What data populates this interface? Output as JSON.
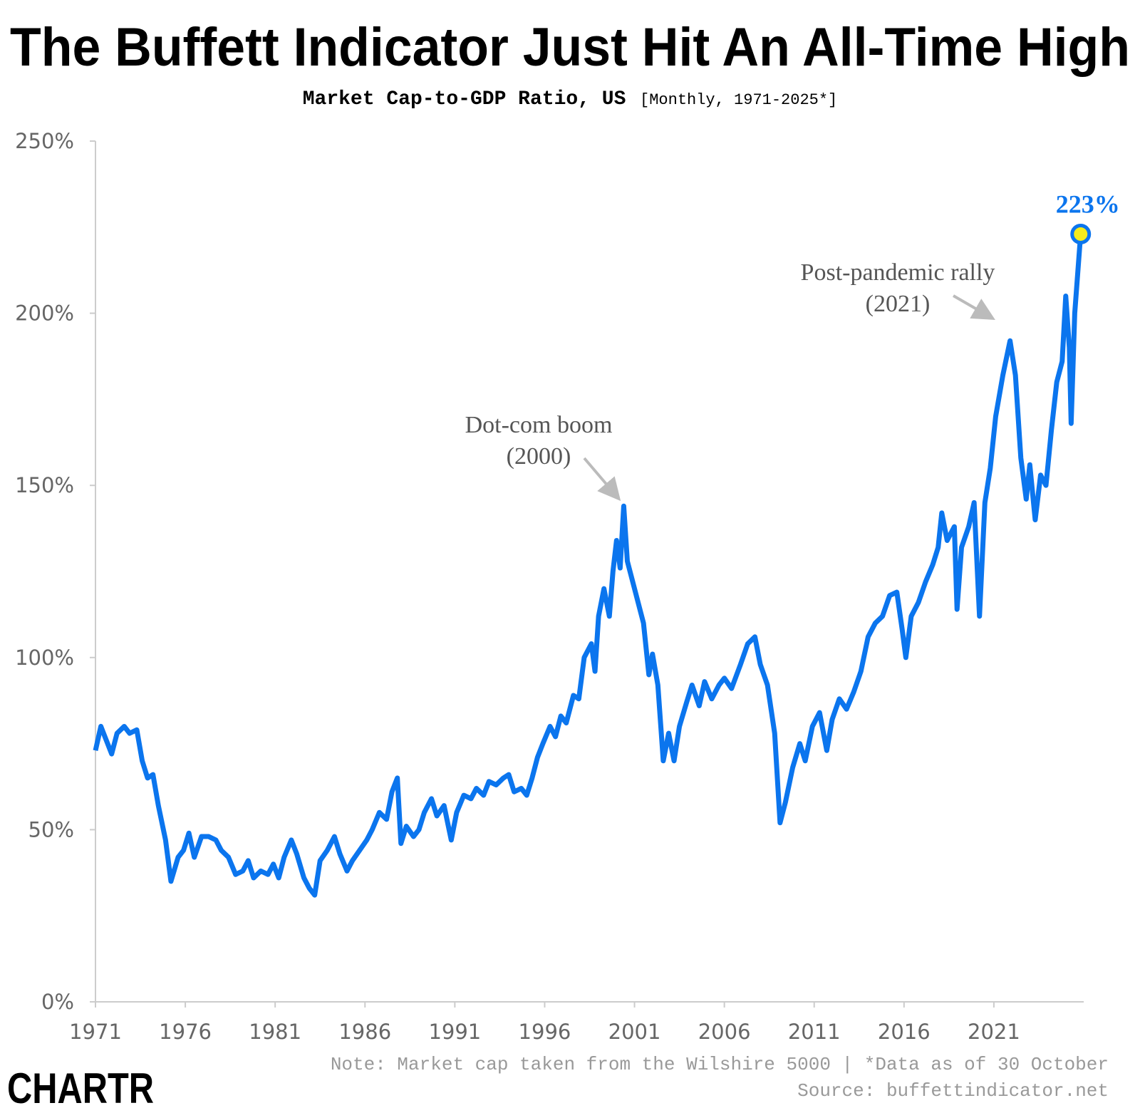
{
  "chart_data": {
    "type": "line",
    "title": "The Buffett Indicator Just Hit An All-Time High",
    "subtitle": "Market Cap-to-GDP Ratio, US",
    "subtitle_note": "[Monthly, 1971-2025*]",
    "color": "#0b75ee",
    "x": [
      1971.0,
      1971.3,
      1971.6,
      1971.9,
      1972.2,
      1972.6,
      1972.9,
      1973.3,
      1973.6,
      1973.9,
      1974.2,
      1974.5,
      1974.9,
      1975.2,
      1975.6,
      1975.9,
      1976.2,
      1976.5,
      1976.9,
      1977.3,
      1977.7,
      1978.0,
      1978.4,
      1978.8,
      1979.2,
      1979.5,
      1979.8,
      1980.2,
      1980.6,
      1980.9,
      1981.2,
      1981.5,
      1981.9,
      1982.2,
      1982.6,
      1982.9,
      1983.2,
      1983.5,
      1983.9,
      1984.3,
      1984.6,
      1985.0,
      1985.3,
      1985.7,
      1986.1,
      1986.4,
      1986.8,
      1987.2,
      1987.5,
      1987.8,
      1988.0,
      1988.3,
      1988.7,
      1989.0,
      1989.3,
      1989.7,
      1990.0,
      1990.4,
      1990.8,
      1991.1,
      1991.5,
      1991.9,
      1992.2,
      1992.6,
      1992.9,
      1993.3,
      1993.7,
      1994.0,
      1994.3,
      1994.7,
      1995.0,
      1995.3,
      1995.6,
      1995.9,
      1996.3,
      1996.6,
      1996.9,
      1997.2,
      1997.6,
      1997.9,
      1998.2,
      1998.6,
      1998.8,
      1999.0,
      1999.3,
      1999.6,
      1999.8,
      2000.0,
      2000.2,
      2000.4,
      2000.6,
      2000.9,
      2001.2,
      2001.5,
      2001.8,
      2002.0,
      2002.3,
      2002.6,
      2002.9,
      2003.2,
      2003.5,
      2003.9,
      2004.2,
      2004.6,
      2004.9,
      2005.3,
      2005.7,
      2006.0,
      2006.4,
      2006.9,
      2007.3,
      2007.7,
      2008.0,
      2008.4,
      2008.8,
      2009.1,
      2009.4,
      2009.8,
      2010.2,
      2010.5,
      2010.9,
      2011.3,
      2011.7,
      2012.0,
      2012.4,
      2012.8,
      2013.2,
      2013.6,
      2014.0,
      2014.4,
      2014.8,
      2015.2,
      2015.6,
      2015.9,
      2016.1,
      2016.4,
      2016.8,
      2017.2,
      2017.6,
      2017.9,
      2018.1,
      2018.4,
      2018.8,
      2018.95,
      2019.2,
      2019.6,
      2019.9,
      2020.2,
      2020.5,
      2020.8,
      2021.1,
      2021.5,
      2021.9,
      2022.2,
      2022.5,
      2022.8,
      2023.0,
      2023.3,
      2023.6,
      2023.9,
      2024.2,
      2024.5,
      2024.8,
      2025.0,
      2025.2,
      2025.3,
      2025.5,
      2025.83
    ],
    "values": [
      73,
      80,
      76,
      72,
      78,
      80,
      78,
      79,
      70,
      65,
      66,
      57,
      47,
      35,
      42,
      44,
      49,
      42,
      48,
      48,
      47,
      44,
      42,
      37,
      38,
      41,
      36,
      38,
      37,
      40,
      36,
      42,
      47,
      43,
      36,
      33,
      31,
      41,
      44,
      48,
      43,
      38,
      41,
      44,
      47,
      50,
      55,
      53,
      61,
      65,
      46,
      51,
      48,
      50,
      55,
      59,
      54,
      57,
      47,
      55,
      60,
      59,
      62,
      60,
      64,
      63,
      65,
      66,
      61,
      62,
      60,
      65,
      71,
      75,
      80,
      77,
      83,
      81,
      89,
      88,
      100,
      104,
      96,
      112,
      120,
      112,
      125,
      134,
      126,
      144,
      128,
      122,
      116,
      110,
      95,
      101,
      92,
      70,
      78,
      70,
      80,
      87,
      92,
      86,
      93,
      88,
      92,
      94,
      91,
      98,
      104,
      106,
      98,
      92,
      78,
      52,
      58,
      68,
      75,
      70,
      80,
      84,
      73,
      82,
      88,
      85,
      90,
      96,
      106,
      110,
      112,
      118,
      119,
      108,
      100,
      112,
      116,
      122,
      127,
      132,
      142,
      134,
      138,
      114,
      132,
      138,
      145,
      112,
      145,
      155,
      170,
      182,
      192,
      182,
      158,
      146,
      156,
      140,
      153,
      150,
      166,
      180,
      186,
      205,
      190,
      168,
      200,
      223
    ],
    "value_labels": [
      null,
      null,
      null,
      null,
      null,
      null,
      null,
      null,
      null,
      null,
      null,
      null,
      null,
      null,
      null,
      null,
      null,
      null,
      null,
      null,
      null,
      null,
      null,
      null,
      null,
      null,
      null,
      null,
      null,
      null,
      null,
      null,
      null,
      null,
      null,
      null,
      null,
      null,
      null,
      null,
      null,
      null,
      null,
      null,
      null,
      null,
      null,
      null,
      null,
      null,
      null,
      null,
      null,
      null,
      null,
      null,
      null,
      null,
      null,
      null,
      null,
      null,
      null,
      null,
      null,
      null,
      null,
      null,
      null,
      null,
      null,
      null,
      null,
      null,
      null,
      null,
      null,
      null,
      null,
      null,
      null,
      null,
      null,
      null,
      null,
      null,
      null,
      null,
      null,
      null,
      null,
      null,
      null,
      null,
      null,
      null,
      null,
      null,
      null,
      null,
      null,
      null,
      null,
      null,
      null,
      null,
      null,
      null,
      null,
      null,
      null,
      null,
      null,
      null,
      null,
      null,
      null,
      null,
      null,
      null,
      null,
      null,
      null,
      null,
      null,
      null,
      null,
      null,
      null,
      null,
      null,
      null,
      null,
      null,
      null,
      null,
      null,
      null,
      null,
      null,
      null,
      null,
      null,
      null,
      null,
      null,
      null,
      null,
      null,
      null,
      null,
      null,
      null,
      null,
      null,
      null,
      null,
      null,
      null,
      null,
      null,
      null,
      null,
      null,
      null,
      null,
      null,
      "223%"
    ],
    "xlim": [
      1971,
      2026
    ],
    "xticks": [
      1971,
      1976,
      1981,
      1986,
      1991,
      1996,
      2001,
      2006,
      2011,
      2016,
      2021
    ],
    "ylim": [
      0,
      250
    ],
    "yticks": [
      {
        "value": 0,
        "label": "0%"
      },
      {
        "value": 50,
        "label": "50%"
      },
      {
        "value": 100,
        "label": "100%"
      },
      {
        "value": 150,
        "label": "150%"
      },
      {
        "value": 200,
        "label": "200%"
      },
      {
        "value": 250,
        "label": "250%"
      }
    ],
    "grid": false,
    "annotations": [
      {
        "lines": [
          "Dot-com boom",
          "(2000)"
        ]
      },
      {
        "lines": [
          "Post-pandemic rally",
          "(2021)"
        ]
      }
    ],
    "note": "Note: Market cap taken from the Wilshire 5000 | *Data as of 30 October",
    "source": "Source: buffettindicator.net",
    "logo": "CHARTR"
  }
}
